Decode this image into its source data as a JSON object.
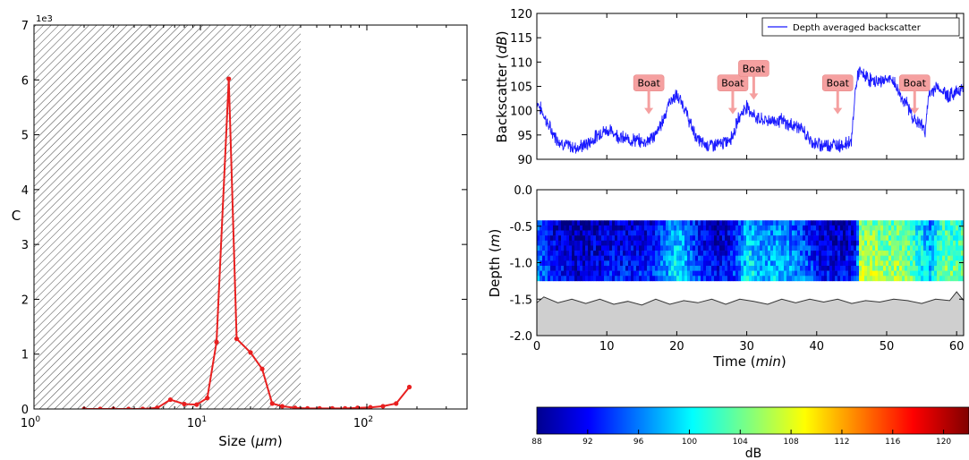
{
  "chart_data": [
    {
      "type": "line",
      "panel": "size-distribution",
      "xlabel": "Size",
      "xlabel_unit": "μm",
      "ylabel": "C",
      "y_multiplier": "1e3",
      "xscale": "log",
      "xlim": [
        1,
        400
      ],
      "ylim": [
        0,
        7
      ],
      "x_tick_labels": [
        "10",
        "10",
        "10"
      ],
      "x_tick_exponents": [
        "0",
        "1",
        "2"
      ],
      "x_tick_values": [
        1,
        10,
        100
      ],
      "y_ticks": [
        "0",
        "1",
        "2",
        "3",
        "4",
        "5",
        "6",
        "7"
      ],
      "y_tick_values": [
        0,
        1,
        2,
        3,
        4,
        5,
        6,
        7
      ],
      "hatched_region": [
        1,
        40
      ],
      "line_color": "#e82020",
      "series": [
        {
          "x": [
            2,
            2.5,
            3,
            3.7,
            4.5,
            5.5,
            6.6,
            8,
            9.5,
            11,
            12.5,
            14.8,
            16.5,
            20,
            23.5,
            27,
            31,
            37,
            44,
            52,
            62,
            74,
            88,
            105,
            125,
            150,
            180
          ],
          "y": [
            0,
            0,
            0,
            0,
            0,
            0.02,
            0.17,
            0.09,
            0.08,
            0.2,
            1.22,
            6.02,
            1.28,
            1.03,
            0.73,
            0.1,
            0.05,
            0.02,
            0.01,
            0.01,
            0.01,
            0.01,
            0.02,
            0.03,
            0.05,
            0.1,
            0.4
          ]
        }
      ]
    },
    {
      "type": "line",
      "panel": "backscatter-timeseries",
      "ylabel": "Backscatter",
      "ylabel_unit": "dB",
      "xlim": [
        0,
        61
      ],
      "ylim": [
        90,
        120
      ],
      "y_ticks": [
        "90",
        "95",
        "100",
        "105",
        "110",
        "115",
        "120"
      ],
      "y_tick_values": [
        90,
        95,
        100,
        105,
        110,
        115,
        120
      ],
      "legend": "top-right",
      "line_color": "#1a1aff",
      "series": [
        {
          "name": "Depth averaged backscatter",
          "x": [
            0,
            1,
            2,
            3,
            4,
            5,
            6,
            7,
            8,
            9,
            10,
            11,
            12,
            13,
            14,
            15,
            16,
            17,
            18,
            19,
            20,
            21,
            22,
            23,
            24,
            25,
            26,
            27,
            28,
            29,
            30,
            31,
            32,
            33,
            34,
            35,
            36,
            37,
            38,
            39,
            40,
            41,
            42,
            43,
            44,
            45,
            45.5,
            46,
            47,
            48,
            49,
            50,
            51,
            52,
            53,
            54,
            55,
            55.5,
            56,
            57,
            58,
            59,
            60,
            61
          ],
          "y": [
            102,
            99,
            96,
            94,
            93,
            92.5,
            92.5,
            93,
            94,
            95.5,
            96,
            95.5,
            94.5,
            94,
            94,
            93.5,
            94,
            95,
            98,
            102,
            103,
            101,
            97,
            94,
            93,
            93,
            93,
            93.5,
            95,
            99,
            101,
            99,
            98,
            98,
            98,
            98,
            97,
            97,
            96,
            94,
            93,
            93,
            93,
            93,
            93,
            94,
            104,
            108,
            107,
            106,
            106,
            106.5,
            106,
            103,
            101,
            98,
            97,
            96,
            103,
            105,
            104,
            103,
            104,
            105
          ]
        }
      ],
      "annotations": [
        {
          "text": "Boat",
          "x": 16,
          "y": 100
        },
        {
          "text": "Boat",
          "x": 28,
          "y": 100
        },
        {
          "text": "Boat",
          "x": 31,
          "y": 103
        },
        {
          "text": "Boat",
          "x": 43,
          "y": 100
        },
        {
          "text": "Boat",
          "x": 54,
          "y": 100
        }
      ],
      "annotation_color": "#f5a0a0"
    },
    {
      "type": "heatmap",
      "panel": "depth-profile",
      "xlabel": "Time",
      "xlabel_unit": "min",
      "ylabel": "Depth",
      "ylabel_unit": "m",
      "xlim": [
        0,
        61
      ],
      "ylim": [
        -2.0,
        0.0
      ],
      "x_ticks": [
        "0",
        "10",
        "20",
        "30",
        "40",
        "50",
        "60"
      ],
      "x_tick_values": [
        0,
        10,
        20,
        30,
        40,
        50,
        60
      ],
      "y_ticks": [
        "0.0",
        "-0.5",
        "-1.0",
        "-1.5",
        "-2.0"
      ],
      "y_tick_values": [
        0.0,
        -0.5,
        -1.0,
        -1.5,
        -2.0
      ],
      "data_depth_range": [
        -1.25,
        -0.42
      ],
      "time_samples_min": [
        0,
        2,
        4,
        6,
        8,
        10,
        12,
        14,
        16,
        18,
        20,
        22,
        24,
        26,
        28,
        30,
        32,
        34,
        36,
        38,
        40,
        42,
        44,
        45.5,
        46,
        48,
        50,
        52,
        54,
        56,
        58,
        60,
        61
      ],
      "mean_backscatter_db": [
        96,
        92,
        91,
        90,
        91,
        92,
        92,
        92,
        92,
        96,
        100,
        95,
        92,
        91,
        93,
        100,
        97,
        98,
        97,
        95,
        92,
        91,
        91,
        92,
        106,
        106,
        105,
        105,
        102,
        98,
        104,
        103,
        104
      ],
      "bottom_fill_color": "#cfcfcf",
      "bottom_depth": {
        "x": [
          0,
          1,
          3,
          5,
          7,
          9,
          11,
          13,
          15,
          17,
          19,
          21,
          23,
          25,
          27,
          29,
          31,
          33,
          35,
          37,
          39,
          41,
          43,
          45,
          47,
          49,
          51,
          53,
          55,
          57,
          59,
          60,
          61
        ],
        "y": [
          -1.55,
          -1.47,
          -1.55,
          -1.5,
          -1.56,
          -1.5,
          -1.57,
          -1.53,
          -1.58,
          -1.5,
          -1.57,
          -1.52,
          -1.55,
          -1.5,
          -1.57,
          -1.5,
          -1.53,
          -1.57,
          -1.5,
          -1.55,
          -1.5,
          -1.54,
          -1.5,
          -1.56,
          -1.52,
          -1.54,
          -1.5,
          -1.52,
          -1.56,
          -1.5,
          -1.52,
          -1.4,
          -1.52
        ]
      }
    },
    {
      "type": "colorbar",
      "panel": "colorbar",
      "label": "dB",
      "range": [
        88,
        122
      ],
      "ticks": [
        "88",
        "92",
        "96",
        "100",
        "104",
        "108",
        "112",
        "116",
        "120"
      ],
      "tick_values": [
        88,
        92,
        96,
        100,
        104,
        108,
        112,
        116,
        120
      ],
      "colormap": "jet"
    }
  ]
}
